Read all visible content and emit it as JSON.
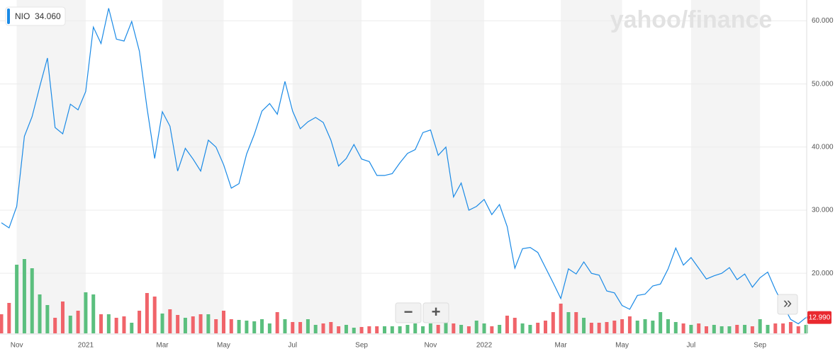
{
  "chart_data": {
    "type": "line",
    "badge": {
      "symbol": "NIO",
      "value": "34.060"
    },
    "watermark": "yahoo/finance",
    "categories": [
      null,
      null,
      "Nov",
      null,
      null,
      null,
      null,
      null,
      null,
      null,
      null,
      "2021",
      null,
      null,
      null,
      null,
      null,
      null,
      null,
      null,
      null,
      "Mar",
      null,
      null,
      null,
      null,
      null,
      null,
      null,
      "May",
      null,
      null,
      null,
      null,
      null,
      null,
      null,
      null,
      "Jul",
      null,
      null,
      null,
      null,
      null,
      null,
      null,
      null,
      "Sep",
      null,
      null,
      null,
      null,
      null,
      null,
      null,
      null,
      "Nov",
      null,
      null,
      null,
      null,
      null,
      null,
      "2022",
      null,
      null,
      null,
      null,
      null,
      null,
      null,
      null,
      null,
      "Mar",
      null,
      null,
      null,
      null,
      null,
      null,
      null,
      "May",
      null,
      null,
      null,
      null,
      null,
      null,
      null,
      null,
      "Jul",
      null,
      null,
      null,
      null,
      null,
      null,
      null,
      null,
      "Sep",
      null,
      null,
      null,
      null,
      null,
      null
    ],
    "series": [
      {
        "name": "NIO",
        "color": "#1a8ae6",
        "values": [
          28.0,
          27.2,
          30.6,
          41.7,
          44.8,
          49.6,
          54.1,
          43.1,
          42.1,
          46.8,
          45.9,
          48.8,
          59.0,
          56.4,
          62.0,
          57.1,
          56.8,
          59.9,
          55.2,
          46.2,
          38.2,
          45.6,
          43.3,
          36.2,
          39.8,
          38.1,
          36.2,
          41.1,
          40.0,
          37.2,
          33.5,
          34.2,
          38.9,
          42.0,
          45.7,
          46.9,
          45.2,
          50.4,
          45.7,
          42.9,
          44.0,
          44.7,
          43.9,
          41.1,
          37.0,
          38.2,
          40.4,
          38.1,
          37.7,
          35.5,
          35.5,
          35.8,
          37.5,
          39.0,
          39.6,
          42.3,
          42.7,
          38.7,
          40.0,
          32.1,
          34.3,
          30.0,
          30.6,
          31.7,
          29.3,
          30.9,
          27.4,
          20.8,
          23.9,
          24.1,
          23.3,
          20.9,
          18.5,
          16.0,
          20.7,
          19.9,
          21.8,
          20.0,
          19.7,
          17.2,
          16.9,
          14.9,
          14.3,
          16.5,
          16.7,
          18.0,
          18.3,
          20.7,
          24.0,
          21.3,
          22.5,
          20.8,
          19.1,
          19.6,
          20.0,
          20.9,
          19.0,
          19.9,
          17.8,
          19.3,
          20.2,
          17.4,
          15.0,
          12.7,
          12.0,
          12.99
        ],
        "last_value_label": "12.990"
      }
    ],
    "volume": {
      "up_color": "#5bbf7e",
      "down_color": "#f0646a",
      "values": [
        27,
        43,
        97,
        105,
        92,
        55,
        40,
        22,
        45,
        25,
        32,
        58,
        55,
        27,
        27,
        22,
        24,
        15,
        32,
        57,
        52,
        28,
        34,
        26,
        22,
        24,
        27,
        27,
        20,
        32,
        20,
        19,
        18,
        17,
        20,
        14,
        30,
        20,
        16,
        16,
        20,
        12,
        14,
        16,
        10,
        12,
        8,
        9,
        10,
        10,
        10,
        10,
        10,
        12,
        14,
        10,
        14,
        12,
        22,
        14,
        12,
        10,
        18,
        14,
        10,
        12,
        25,
        22,
        14,
        12,
        15,
        18,
        30,
        42,
        30,
        30,
        22,
        15,
        15,
        16,
        18,
        20,
        24,
        18,
        20,
        18,
        30,
        20,
        16,
        14,
        12,
        14,
        10,
        12,
        10,
        10,
        12,
        12,
        10,
        20,
        12,
        14,
        14,
        16,
        10,
        12
      ]
    },
    "ylim": [
      10.6,
      63.3
    ],
    "yticks": [
      {
        "value": 20,
        "label": "20.000"
      },
      {
        "value": 30,
        "label": "30.000"
      },
      {
        "value": 40,
        "label": "40.000"
      },
      {
        "value": 50,
        "label": "50.000"
      },
      {
        "value": 60,
        "label": "60.000"
      }
    ],
    "grid": true,
    "controls": {
      "zoom_out": "−",
      "zoom_in": "+",
      "expand": "»"
    }
  }
}
